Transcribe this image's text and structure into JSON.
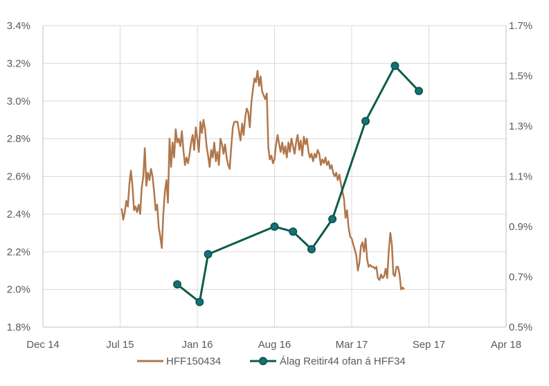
{
  "chart_data": {
    "type": "line",
    "x_ticks": [
      "Dec 14",
      "Jul 15",
      "Jan 16",
      "Aug 16",
      "Mar 17",
      "Sep 17",
      "Apr 18"
    ],
    "y_left_ticks": [
      "1.8%",
      "2.0%",
      "2.2%",
      "2.4%",
      "2.6%",
      "2.8%",
      "3.0%",
      "3.2%",
      "3.4%"
    ],
    "y_right_ticks": [
      "0.5%",
      "0.7%",
      "0.9%",
      "1.1%",
      "1.3%",
      "1.5%",
      "1.7%"
    ],
    "x_range": [
      0,
      6
    ],
    "y_left_range": [
      1.8,
      3.4
    ],
    "y_right_range": [
      0.5,
      1.7
    ],
    "grid": true,
    "legend_position": "bottom",
    "series": [
      {
        "name": "HFF150434",
        "axis": "left",
        "color": "#b0774b",
        "style": "line",
        "points": [
          [
            1.02,
            2.43
          ],
          [
            1.04,
            2.37
          ],
          [
            1.06,
            2.41
          ],
          [
            1.08,
            2.47
          ],
          [
            1.1,
            2.44
          ],
          [
            1.12,
            2.56
          ],
          [
            1.14,
            2.63
          ],
          [
            1.16,
            2.55
          ],
          [
            1.18,
            2.42
          ],
          [
            1.2,
            2.44
          ],
          [
            1.22,
            2.41
          ],
          [
            1.24,
            2.45
          ],
          [
            1.26,
            2.4
          ],
          [
            1.28,
            2.54
          ],
          [
            1.3,
            2.6
          ],
          [
            1.32,
            2.75
          ],
          [
            1.34,
            2.55
          ],
          [
            1.36,
            2.62
          ],
          [
            1.38,
            2.58
          ],
          [
            1.4,
            2.64
          ],
          [
            1.42,
            2.6
          ],
          [
            1.44,
            2.52
          ],
          [
            1.46,
            2.42
          ],
          [
            1.48,
            2.45
          ],
          [
            1.5,
            2.33
          ],
          [
            1.52,
            2.28
          ],
          [
            1.54,
            2.22
          ],
          [
            1.56,
            2.4
          ],
          [
            1.58,
            2.52
          ],
          [
            1.6,
            2.58
          ],
          [
            1.62,
            2.46
          ],
          [
            1.64,
            2.8
          ],
          [
            1.66,
            2.65
          ],
          [
            1.68,
            2.78
          ],
          [
            1.7,
            2.7
          ],
          [
            1.72,
            2.85
          ],
          [
            1.74,
            2.78
          ],
          [
            1.76,
            2.8
          ],
          [
            1.78,
            2.76
          ],
          [
            1.8,
            2.84
          ],
          [
            1.82,
            2.74
          ],
          [
            1.84,
            2.66
          ],
          [
            1.86,
            2.7
          ],
          [
            1.88,
            2.67
          ],
          [
            1.9,
            2.72
          ],
          [
            1.92,
            2.78
          ],
          [
            1.94,
            2.82
          ],
          [
            1.96,
            2.74
          ],
          [
            1.98,
            2.86
          ],
          [
            2.0,
            2.8
          ],
          [
            2.02,
            2.73
          ],
          [
            2.04,
            2.89
          ],
          [
            2.06,
            2.83
          ],
          [
            2.08,
            2.9
          ],
          [
            2.1,
            2.85
          ],
          [
            2.12,
            2.76
          ],
          [
            2.14,
            2.71
          ],
          [
            2.16,
            2.65
          ],
          [
            2.18,
            2.74
          ],
          [
            2.2,
            2.7
          ],
          [
            2.22,
            2.78
          ],
          [
            2.24,
            2.68
          ],
          [
            2.26,
            2.73
          ],
          [
            2.28,
            2.66
          ],
          [
            2.3,
            2.8
          ],
          [
            2.32,
            2.77
          ],
          [
            2.34,
            2.72
          ],
          [
            2.36,
            2.77
          ],
          [
            2.38,
            2.7
          ],
          [
            2.4,
            2.66
          ],
          [
            2.42,
            2.64
          ],
          [
            2.44,
            2.76
          ],
          [
            2.46,
            2.86
          ],
          [
            2.48,
            2.89
          ],
          [
            2.5,
            2.89
          ],
          [
            2.52,
            2.89
          ],
          [
            2.54,
            2.84
          ],
          [
            2.56,
            2.79
          ],
          [
            2.58,
            2.88
          ],
          [
            2.6,
            2.82
          ],
          [
            2.62,
            2.91
          ],
          [
            2.64,
            2.96
          ],
          [
            2.66,
            2.94
          ],
          [
            2.68,
            2.86
          ],
          [
            2.7,
            2.99
          ],
          [
            2.72,
            3.06
          ],
          [
            2.74,
            3.12
          ],
          [
            2.76,
            3.1
          ],
          [
            2.78,
            3.16
          ],
          [
            2.8,
            3.08
          ],
          [
            2.82,
            3.13
          ],
          [
            2.84,
            3.05
          ],
          [
            2.86,
            3.03
          ],
          [
            2.88,
            3.01
          ],
          [
            2.9,
            3.04
          ],
          [
            2.92,
            2.75
          ],
          [
            2.94,
            2.69
          ],
          [
            2.96,
            2.71
          ],
          [
            2.98,
            2.67
          ],
          [
            3.0,
            2.69
          ],
          [
            3.02,
            2.77
          ],
          [
            3.04,
            2.82
          ],
          [
            3.06,
            2.77
          ],
          [
            3.08,
            2.73
          ],
          [
            3.1,
            2.78
          ],
          [
            3.12,
            2.72
          ],
          [
            3.14,
            2.76
          ],
          [
            3.16,
            2.7
          ],
          [
            3.18,
            2.78
          ],
          [
            3.2,
            2.73
          ],
          [
            3.22,
            2.8
          ],
          [
            3.24,
            2.76
          ],
          [
            3.26,
            2.72
          ],
          [
            3.28,
            2.78
          ],
          [
            3.3,
            2.82
          ],
          [
            3.32,
            2.74
          ],
          [
            3.34,
            2.79
          ],
          [
            3.36,
            2.71
          ],
          [
            3.38,
            2.81
          ],
          [
            3.4,
            2.77
          ],
          [
            3.42,
            2.8
          ],
          [
            3.44,
            2.73
          ],
          [
            3.46,
            2.7
          ],
          [
            3.48,
            2.72
          ],
          [
            3.5,
            2.68
          ],
          [
            3.52,
            2.72
          ],
          [
            3.54,
            2.7
          ],
          [
            3.56,
            2.74
          ],
          [
            3.58,
            2.72
          ],
          [
            3.6,
            2.66
          ],
          [
            3.62,
            2.69
          ],
          [
            3.64,
            2.67
          ],
          [
            3.66,
            2.7
          ],
          [
            3.68,
            2.66
          ],
          [
            3.7,
            2.68
          ],
          [
            3.72,
            2.64
          ],
          [
            3.74,
            2.66
          ],
          [
            3.76,
            2.62
          ],
          [
            3.78,
            2.6
          ],
          [
            3.8,
            2.62
          ],
          [
            3.82,
            2.58
          ],
          [
            3.84,
            2.61
          ],
          [
            3.86,
            2.56
          ],
          [
            3.88,
            2.52
          ],
          [
            3.9,
            2.48
          ],
          [
            3.92,
            2.38
          ],
          [
            3.94,
            2.42
          ],
          [
            3.96,
            2.33
          ],
          [
            3.98,
            2.28
          ],
          [
            4.0,
            2.27
          ],
          [
            4.02,
            2.24
          ],
          [
            4.04,
            2.21
          ],
          [
            4.06,
            2.18
          ],
          [
            4.08,
            2.1
          ],
          [
            4.1,
            2.14
          ],
          [
            4.12,
            2.23
          ],
          [
            4.14,
            2.25
          ],
          [
            4.16,
            2.2
          ],
          [
            4.18,
            2.27
          ],
          [
            4.2,
            2.16
          ],
          [
            4.22,
            2.12
          ],
          [
            4.24,
            2.13
          ],
          [
            4.26,
            2.12
          ],
          [
            4.28,
            2.12
          ],
          [
            4.3,
            2.11
          ],
          [
            4.32,
            2.12
          ],
          [
            4.34,
            2.06
          ],
          [
            4.36,
            2.05
          ],
          [
            4.38,
            2.08
          ],
          [
            4.4,
            2.06
          ],
          [
            4.42,
            2.07
          ],
          [
            4.44,
            2.11
          ],
          [
            4.46,
            2.06
          ],
          [
            4.48,
            2.2
          ],
          [
            4.5,
            2.3
          ],
          [
            4.52,
            2.24
          ],
          [
            4.54,
            2.08
          ],
          [
            4.56,
            2.07
          ],
          [
            4.58,
            2.12
          ],
          [
            4.6,
            2.12
          ],
          [
            4.62,
            2.08
          ],
          [
            4.64,
            2.0
          ],
          [
            4.66,
            2.01
          ],
          [
            4.68,
            2.0
          ]
        ]
      },
      {
        "name": "Álag Reitir44 ofan á HFF34",
        "axis": "right",
        "color": "#0c5c47",
        "style": "line-marker",
        "marker_fill": "#196f82",
        "points": [
          [
            1.74,
            0.67
          ],
          [
            2.03,
            0.6
          ],
          [
            2.14,
            0.79
          ],
          [
            3.0,
            0.9
          ],
          [
            3.24,
            0.88
          ],
          [
            3.48,
            0.81
          ],
          [
            3.75,
            0.93
          ],
          [
            4.18,
            1.32
          ],
          [
            4.56,
            1.54
          ],
          [
            4.87,
            1.44
          ]
        ]
      }
    ]
  }
}
